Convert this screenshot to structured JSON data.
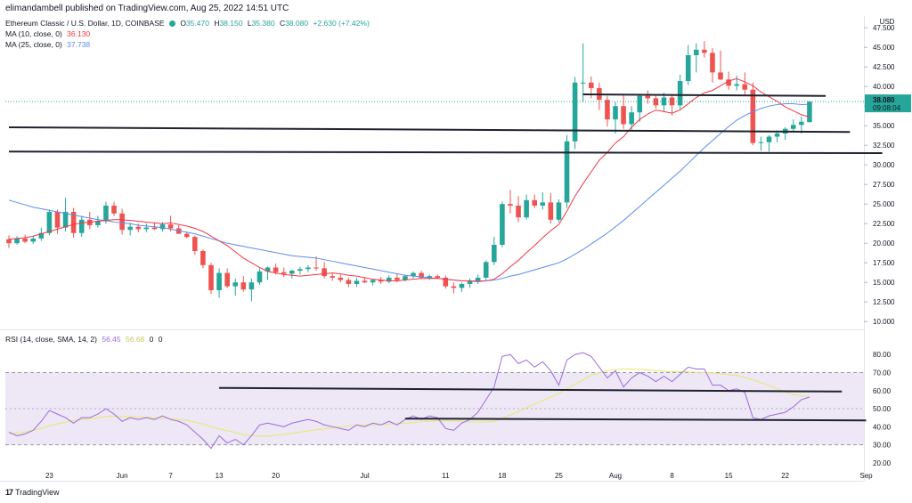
{
  "header": {
    "publisher": "elimandambell published on TradingView.com, Aug 25, 2022 14:51 UTC"
  },
  "legend": {
    "symbol": "Ethereum Classic / U.S. Dollar, 1D, COINBASE",
    "ohlc": {
      "o_label": "O",
      "o": "35.470",
      "h_label": "H",
      "h": "38.150",
      "l_label": "L",
      "l": "35.380",
      "c_label": "C",
      "c": "38.080",
      "chg": "+2.630 (+7.42%)"
    },
    "ma10": {
      "label": "MA (10, close, 0)",
      "value": "36.130"
    },
    "ma25": {
      "label": "MA (25, close, 0)",
      "value": "37.738"
    },
    "rsi": {
      "label": "RSI (14, close, SMA, 14, 2)",
      "v1": "56.45",
      "v2": "56.68",
      "v3": "0",
      "v4": "0"
    }
  },
  "price_axis": {
    "currency": "USD",
    "ticks": [
      "47.500",
      "45.000",
      "42.500",
      "40.000",
      "37.500",
      "35.000",
      "32.500",
      "30.000",
      "27.500",
      "25.000",
      "22.500",
      "20.000",
      "17.500",
      "15.000",
      "12.500",
      "10.000"
    ],
    "last_price": "38.080",
    "countdown": "09:08:04"
  },
  "rsi_axis": {
    "ticks": [
      "80.00",
      "70.00",
      "60.00",
      "50.00",
      "40.00",
      "30.00",
      "20.00"
    ]
  },
  "time_axis": {
    "labels": [
      "23",
      "Jun",
      "7",
      "13",
      "20",
      "Jul",
      "11",
      "18",
      "25",
      "Aug",
      "8",
      "15",
      "22",
      "Sep"
    ]
  },
  "brand": {
    "icon": "17",
    "name": "TradingView"
  },
  "colors": {
    "up": "#26a69a",
    "down": "#ef5350",
    "ma10": "#f23645",
    "ma25": "#5b8def",
    "rsi": "#9c6ade",
    "rsi_sma": "#e8e86a",
    "rsi_band": "#ede7f6",
    "trendline": "#1e222d"
  },
  "chart_data": {
    "type": "candlestick",
    "title": "Ethereum Classic / U.S. Dollar, 1D, COINBASE",
    "x_dates": [
      "May 18",
      "May 19",
      "May 20",
      "May 21",
      "May 22",
      "May 23",
      "May 24",
      "May 25",
      "May 26",
      "May 27",
      "May 28",
      "May 29",
      "May 30",
      "May 31",
      "Jun 1",
      "Jun 2",
      "Jun 3",
      "Jun 4",
      "Jun 5",
      "Jun 6",
      "Jun 7",
      "Jun 8",
      "Jun 9",
      "Jun 10",
      "Jun 11",
      "Jun 12",
      "Jun 13",
      "Jun 14",
      "Jun 15",
      "Jun 16",
      "Jun 17",
      "Jun 18",
      "Jun 19",
      "Jun 20",
      "Jun 21",
      "Jun 22",
      "Jun 23",
      "Jun 24",
      "Jun 25",
      "Jun 26",
      "Jun 27",
      "Jun 28",
      "Jun 29",
      "Jun 30",
      "Jul 1",
      "Jul 2",
      "Jul 3",
      "Jul 4",
      "Jul 5",
      "Jul 6",
      "Jul 7",
      "Jul 8",
      "Jul 9",
      "Jul 10",
      "Jul 11",
      "Jul 12",
      "Jul 13",
      "Jul 14",
      "Jul 15",
      "Jul 16",
      "Jul 17",
      "Jul 18",
      "Jul 19",
      "Jul 20",
      "Jul 21",
      "Jul 22",
      "Jul 23",
      "Jul 24",
      "Jul 25",
      "Jul 26",
      "Jul 27",
      "Jul 28",
      "Jul 29",
      "Jul 30",
      "Jul 31",
      "Aug 1",
      "Aug 2",
      "Aug 3",
      "Aug 4",
      "Aug 5",
      "Aug 6",
      "Aug 7",
      "Aug 8",
      "Aug 9",
      "Aug 10",
      "Aug 11",
      "Aug 12",
      "Aug 13",
      "Aug 14",
      "Aug 15",
      "Aug 16",
      "Aug 17",
      "Aug 18",
      "Aug 19",
      "Aug 20",
      "Aug 21",
      "Aug 22",
      "Aug 23",
      "Aug 24",
      "Aug 25"
    ],
    "candles": [
      [
        20.5,
        21.0,
        19.4,
        20.0
      ],
      [
        20.0,
        20.9,
        19.8,
        20.6
      ],
      [
        20.6,
        21.1,
        20.0,
        20.2
      ],
      [
        20.2,
        20.9,
        19.9,
        20.6
      ],
      [
        20.6,
        22.0,
        20.3,
        21.3
      ],
      [
        21.3,
        24.3,
        21.0,
        24.0
      ],
      [
        24.0,
        24.3,
        21.2,
        22.0
      ],
      [
        22.0,
        25.8,
        21.5,
        24.0
      ],
      [
        24.0,
        24.5,
        20.7,
        21.3
      ],
      [
        21.3,
        23.5,
        20.8,
        23.0
      ],
      [
        23.0,
        24.0,
        21.8,
        22.3
      ],
      [
        22.3,
        23.5,
        22.0,
        22.8
      ],
      [
        22.8,
        25.3,
        22.5,
        24.8
      ],
      [
        24.8,
        25.3,
        23.5,
        23.8
      ],
      [
        23.8,
        24.4,
        21.1,
        21.7
      ],
      [
        21.7,
        22.6,
        21.0,
        22.1
      ],
      [
        22.1,
        22.5,
        21.4,
        21.8
      ],
      [
        21.8,
        22.5,
        21.4,
        22.0
      ],
      [
        22.0,
        22.6,
        21.7,
        21.8
      ],
      [
        21.8,
        22.7,
        21.5,
        22.4
      ],
      [
        22.4,
        23.5,
        21.5,
        21.9
      ],
      [
        21.9,
        22.3,
        21.2,
        21.2
      ],
      [
        21.2,
        21.5,
        20.6,
        20.8
      ],
      [
        20.8,
        21.0,
        18.5,
        19.0
      ],
      [
        19.0,
        19.2,
        16.8,
        17.2
      ],
      [
        17.2,
        17.5,
        13.5,
        14.0
      ],
      [
        14.0,
        16.8,
        13.0,
        16.2
      ],
      [
        16.2,
        16.8,
        14.3,
        14.5
      ],
      [
        14.5,
        15.5,
        13.3,
        15.0
      ],
      [
        15.0,
        15.8,
        13.8,
        14.1
      ],
      [
        14.1,
        15.5,
        12.6,
        15.0
      ],
      [
        15.0,
        16.8,
        14.7,
        16.4
      ],
      [
        16.4,
        17.0,
        15.3,
        16.9
      ],
      [
        16.9,
        17.4,
        16.0,
        16.3
      ],
      [
        16.3,
        16.9,
        15.7,
        16.1
      ],
      [
        16.1,
        16.6,
        15.5,
        16.5
      ],
      [
        16.5,
        17.0,
        16.0,
        16.7
      ],
      [
        16.7,
        17.2,
        16.3,
        16.9
      ],
      [
        16.9,
        18.3,
        16.5,
        16.8
      ],
      [
        16.8,
        17.6,
        15.5,
        15.8
      ],
      [
        15.8,
        16.2,
        15.2,
        15.6
      ],
      [
        15.6,
        16.0,
        15.0,
        15.3
      ],
      [
        15.3,
        15.6,
        14.4,
        14.8
      ],
      [
        14.8,
        15.6,
        14.4,
        15.2
      ],
      [
        15.2,
        15.6,
        14.9,
        15.0
      ],
      [
        15.0,
        15.4,
        14.6,
        15.3
      ],
      [
        15.3,
        15.7,
        14.8,
        15.1
      ],
      [
        15.1,
        15.9,
        14.9,
        15.6
      ],
      [
        15.6,
        16.1,
        15.0,
        15.3
      ],
      [
        15.3,
        16.0,
        15.1,
        15.8
      ],
      [
        15.8,
        16.4,
        15.5,
        16.2
      ],
      [
        16.2,
        16.5,
        15.4,
        15.6
      ],
      [
        15.6,
        16.0,
        15.3,
        15.8
      ],
      [
        15.8,
        16.0,
        15.5,
        15.6
      ],
      [
        15.6,
        15.9,
        14.2,
        14.5
      ],
      [
        14.5,
        15.0,
        13.6,
        14.3
      ],
      [
        14.3,
        15.0,
        13.8,
        14.8
      ],
      [
        14.8,
        15.5,
        14.3,
        15.2
      ],
      [
        15.2,
        16.0,
        14.8,
        15.6
      ],
      [
        15.6,
        17.8,
        15.3,
        17.6
      ],
      [
        17.6,
        20.8,
        17.2,
        19.8
      ],
      [
        19.8,
        25.3,
        19.5,
        25.0
      ],
      [
        25.0,
        26.8,
        23.8,
        24.8
      ],
      [
        24.8,
        26.0,
        22.7,
        23.3
      ],
      [
        23.3,
        26.2,
        23.0,
        25.5
      ],
      [
        25.5,
        26.2,
        24.5,
        24.8
      ],
      [
        24.8,
        26.5,
        24.3,
        25.2
      ],
      [
        25.2,
        26.4,
        22.5,
        23.0
      ],
      [
        23.0,
        25.6,
        22.7,
        25.2
      ],
      [
        25.2,
        33.8,
        24.5,
        33.0
      ],
      [
        33.0,
        41.2,
        32.0,
        40.5
      ],
      [
        40.5,
        45.5,
        38.0,
        40.5
      ],
      [
        40.5,
        41.3,
        38.5,
        39.8
      ],
      [
        39.8,
        40.5,
        37.0,
        38.3
      ],
      [
        38.3,
        38.8,
        34.9,
        35.8
      ],
      [
        35.8,
        38.0,
        34.0,
        37.5
      ],
      [
        37.5,
        39.0,
        34.6,
        35.2
      ],
      [
        35.2,
        37.5,
        34.5,
        36.7
      ],
      [
        36.7,
        39.0,
        35.5,
        38.8
      ],
      [
        38.8,
        39.5,
        37.8,
        38.5
      ],
      [
        38.5,
        39.0,
        37.2,
        37.6
      ],
      [
        37.6,
        39.2,
        36.8,
        38.6
      ],
      [
        38.6,
        38.9,
        36.3,
        37.6
      ],
      [
        37.6,
        41.5,
        37.1,
        40.7
      ],
      [
        40.7,
        45.3,
        40.2,
        44.0
      ],
      [
        44.0,
        45.5,
        41.8,
        44.7
      ],
      [
        44.7,
        45.8,
        43.7,
        44.3
      ],
      [
        44.3,
        44.9,
        40.5,
        41.8
      ],
      [
        41.8,
        44.6,
        40.8,
        40.9
      ],
      [
        40.9,
        41.9,
        39.6,
        40.1
      ],
      [
        40.1,
        41.4,
        39.5,
        40.3
      ],
      [
        40.3,
        41.8,
        39.0,
        39.6
      ],
      [
        39.6,
        40.5,
        32.5,
        32.8
      ],
      [
        32.8,
        33.6,
        31.8,
        32.9
      ],
      [
        32.9,
        33.8,
        31.7,
        33.6
      ],
      [
        33.6,
        34.4,
        32.9,
        34.0
      ],
      [
        34.0,
        34.8,
        33.2,
        34.6
      ],
      [
        34.6,
        35.8,
        34.1,
        35.1
      ],
      [
        35.1,
        36.2,
        34.0,
        35.5
      ],
      [
        35.47,
        38.15,
        35.38,
        38.08
      ]
    ],
    "ma10": [
      20.5,
      20.6,
      20.7,
      20.9,
      21.2,
      21.5,
      21.8,
      22.1,
      22.4,
      22.6,
      22.7,
      22.8,
      22.9,
      23.0,
      23.0,
      22.9,
      22.8,
      22.7,
      22.6,
      22.5,
      22.6,
      22.4,
      22.2,
      21.9,
      21.5,
      20.9,
      20.3,
      19.7,
      18.9,
      18.1,
      17.5,
      16.9,
      16.4,
      16.2,
      16.0,
      15.9,
      15.8,
      15.9,
      16.0,
      16.1,
      16.2,
      16.1,
      15.9,
      15.8,
      15.6,
      15.4,
      15.3,
      15.2,
      15.2,
      15.3,
      15.4,
      15.5,
      15.5,
      15.5,
      15.4,
      15.3,
      15.2,
      15.2,
      15.1,
      15.2,
      15.4,
      16.1,
      17.0,
      17.8,
      18.8,
      19.7,
      20.7,
      21.6,
      22.4,
      24.1,
      26.0,
      27.6,
      29.1,
      30.6,
      31.6,
      32.8,
      33.6,
      34.8,
      35.8,
      36.5,
      37.0,
      36.8,
      36.6,
      37.0,
      37.8,
      38.6,
      39.2,
      39.5,
      40.1,
      40.7,
      41.0,
      40.6,
      40.1,
      39.3,
      38.7,
      38.1,
      37.4,
      36.9,
      36.4,
      36.13
    ],
    "ma25": [
      25.5,
      25.2,
      24.9,
      24.6,
      24.4,
      24.2,
      24.0,
      23.8,
      23.6,
      23.4,
      23.2,
      23.0,
      22.9,
      22.7,
      22.6,
      22.5,
      22.3,
      22.2,
      22.1,
      22.0,
      21.8,
      21.6,
      21.4,
      21.2,
      20.9,
      20.6,
      20.3,
      20.0,
      19.8,
      19.6,
      19.4,
      19.2,
      19.0,
      18.8,
      18.6,
      18.4,
      18.3,
      18.2,
      18.1,
      17.9,
      17.7,
      17.5,
      17.3,
      17.1,
      16.9,
      16.7,
      16.5,
      16.3,
      16.1,
      15.9,
      15.8,
      15.7,
      15.6,
      15.5,
      15.4,
      15.3,
      15.2,
      15.2,
      15.2,
      15.2,
      15.3,
      15.5,
      15.8,
      16.0,
      16.3,
      16.6,
      16.9,
      17.2,
      17.5,
      18.0,
      18.6,
      19.2,
      19.9,
      20.6,
      21.3,
      22.1,
      22.9,
      23.8,
      24.7,
      25.6,
      26.5,
      27.4,
      28.3,
      29.2,
      30.2,
      31.2,
      32.2,
      33.1,
      34.0,
      34.9,
      35.7,
      36.3,
      36.8,
      37.2,
      37.5,
      37.7,
      37.8,
      37.8,
      37.7,
      37.74
    ],
    "rsi": [
      37,
      35,
      36,
      38,
      43,
      49,
      47,
      45,
      42,
      45,
      45,
      47,
      50,
      47,
      43,
      45,
      44,
      45,
      44,
      46,
      44,
      43,
      41,
      37,
      33,
      28,
      35,
      31,
      33,
      30,
      35,
      41,
      42,
      41,
      40,
      42,
      43,
      44,
      43,
      41,
      40,
      39,
      38,
      41,
      40,
      42,
      41,
      43,
      41,
      44,
      46,
      44,
      46,
      45,
      39,
      38,
      42,
      44,
      48,
      55,
      62,
      79,
      80,
      75,
      77,
      73,
      76,
      71,
      63,
      77,
      80,
      81,
      79,
      73,
      67,
      71,
      62,
      67,
      70,
      68,
      65,
      68,
      65,
      69,
      73,
      72,
      72,
      63,
      63,
      60,
      61,
      59,
      45,
      44,
      46,
      47,
      48,
      51,
      55,
      56.45
    ],
    "rsi_sma": [
      36,
      36.5,
      37,
      38,
      39,
      40.5,
      41.5,
      42.5,
      43.5,
      44,
      44.5,
      45,
      45.5,
      45.8,
      45.5,
      45.5,
      45.3,
      45.2,
      45,
      44.8,
      44.5,
      44,
      43.5,
      42.5,
      41.5,
      40,
      38.8,
      37.8,
      36.8,
      35.5,
      35,
      34.8,
      34.8,
      35.3,
      35.8,
      36.4,
      37,
      37.7,
      38.3,
      38.8,
      39.5,
      40,
      40.5,
      40.8,
      41,
      41,
      41.2,
      41.5,
      41.8,
      42,
      42.3,
      42.7,
      43,
      43.3,
      43.3,
      43.1,
      42.9,
      42.7,
      42.6,
      42.6,
      43,
      44.6,
      46.5,
      48.5,
      50.5,
      52.5,
      54.5,
      56.5,
      58.5,
      61,
      63.5,
      66,
      68.5,
      70,
      71,
      71.6,
      72,
      72,
      71.8,
      71.5,
      71,
      70.8,
      70.5,
      70.4,
      70.4,
      70.2,
      70.1,
      69.8,
      69.4,
      68.9,
      68.4,
      67.3,
      66,
      64.5,
      62.8,
      61,
      59.3,
      57.8,
      57,
      56.68
    ],
    "price_range": [
      9.0,
      49.0
    ],
    "rsi_range": [
      15,
      88
    ],
    "rsi_band": [
      30,
      70
    ],
    "rsi_midline": 50,
    "trendlines_price": [
      {
        "from": [
          "Jul 28",
          39.0
        ],
        "to": [
          "Aug 27",
          38.8
        ]
      },
      {
        "from": [
          "May 18",
          34.8
        ],
        "to": [
          "Aug 30",
          34.2
        ]
      },
      {
        "from": [
          "May 18",
          31.7
        ],
        "to": [
          "Sep 3",
          31.5
        ]
      }
    ],
    "trendlines_rsi": [
      {
        "from": [
          "Jun 13",
          61.5
        ],
        "to": [
          "Aug 29",
          59.5
        ]
      },
      {
        "from": [
          "Jul 6",
          44.5
        ],
        "to": [
          "Sep 1",
          43.5
        ]
      }
    ]
  }
}
